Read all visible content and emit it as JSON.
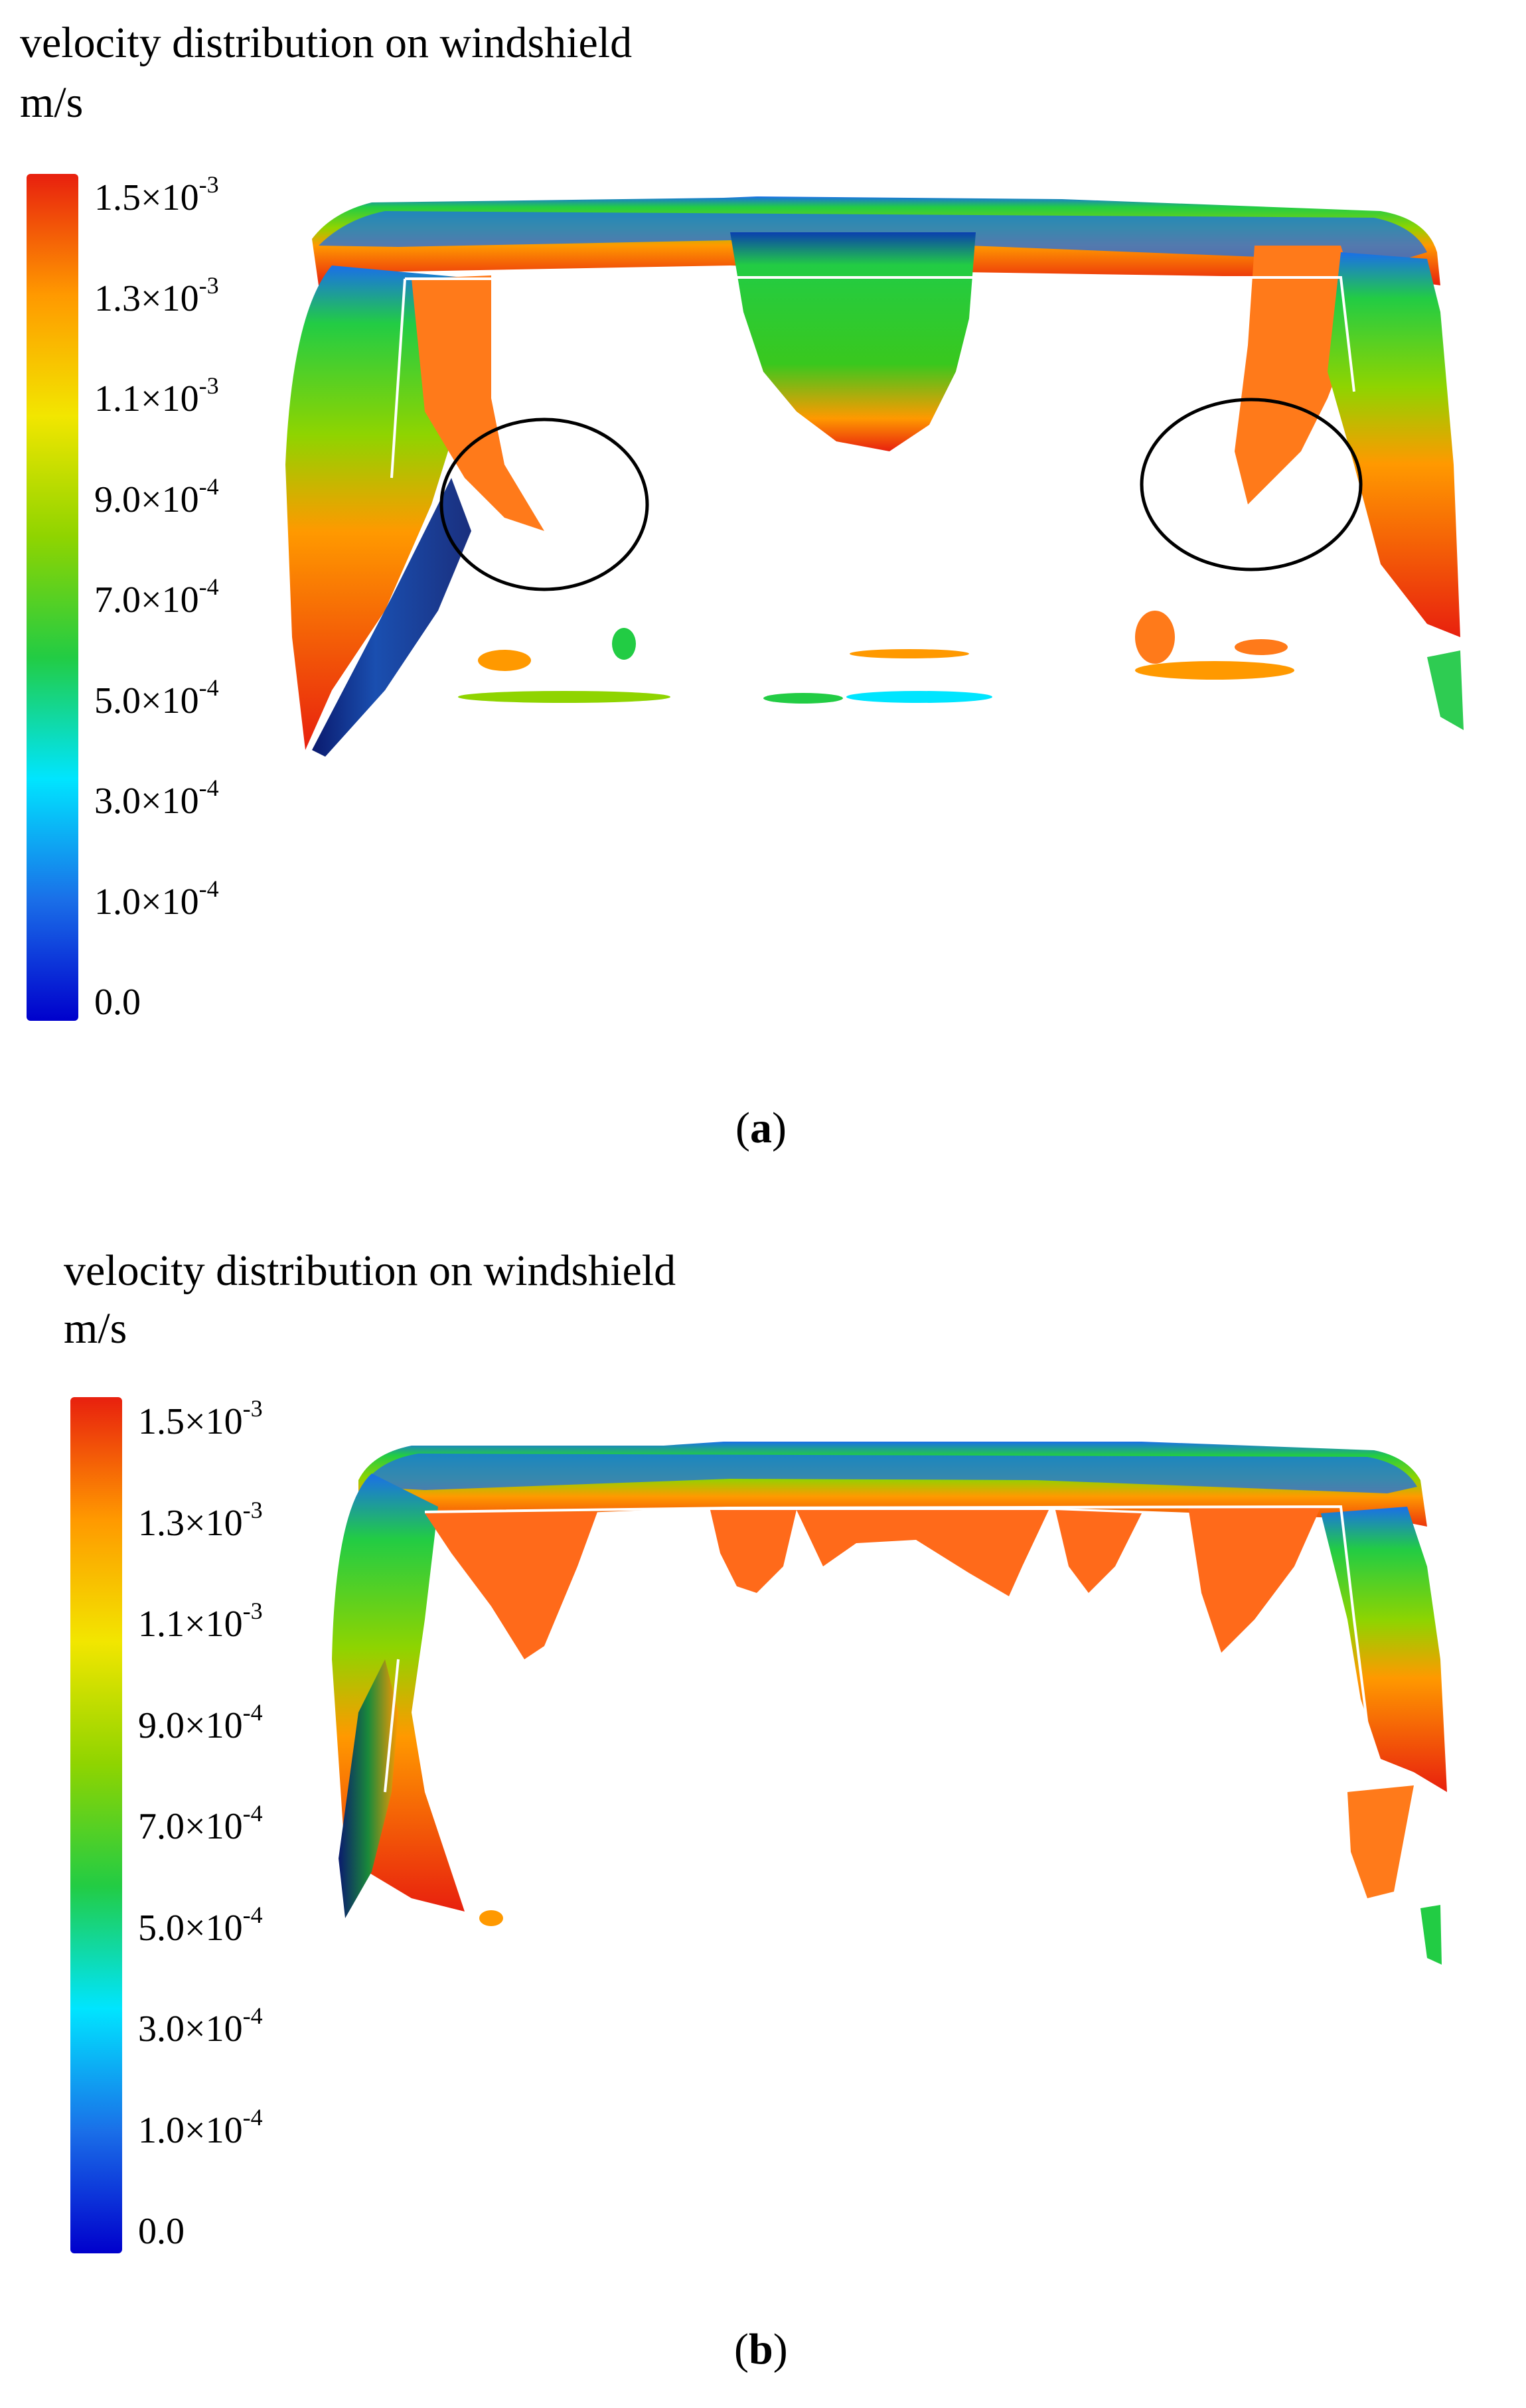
{
  "panels": [
    {
      "id": "a",
      "title": "velocity distribution on windshield",
      "unit": "m/s",
      "colorbar": {
        "colors": [
          "#0000cc",
          "#1a6fe8",
          "#00e5ff",
          "#22cc44",
          "#8fd400",
          "#f2e600",
          "#ff9900",
          "#e8200e"
        ],
        "ticks": [
          {
            "mantissa": "1.5",
            "times": "×",
            "base": "10",
            "exp": "-3"
          },
          {
            "mantissa": "1.3",
            "times": "×",
            "base": "10",
            "exp": "-3"
          },
          {
            "mantissa": "1.1",
            "times": "×",
            "base": "10",
            "exp": "-3"
          },
          {
            "mantissa": "9.0",
            "times": "×",
            "base": "10",
            "exp": "-4"
          },
          {
            "mantissa": "7.0",
            "times": "×",
            "base": "10",
            "exp": "-4"
          },
          {
            "mantissa": "5.0",
            "times": "×",
            "base": "10",
            "exp": "-4"
          },
          {
            "mantissa": "3.0",
            "times": "×",
            "base": "10",
            "exp": "-4"
          },
          {
            "mantissa": "1.0",
            "times": "×",
            "base": "10",
            "exp": "-4"
          },
          {
            "mantissa": "0.0",
            "times": "",
            "base": "",
            "exp": ""
          }
        ]
      },
      "caption": {
        "open": "(",
        "letter": "a",
        "close": ")"
      }
    },
    {
      "id": "b",
      "title": "velocity distribution on windshield",
      "unit": "m/s",
      "colorbar": {
        "colors": [
          "#0000cc",
          "#1a6fe8",
          "#00e5ff",
          "#22cc44",
          "#8fd400",
          "#f2e600",
          "#ff9900",
          "#e8200e"
        ],
        "ticks": [
          {
            "mantissa": "1.5",
            "times": "×",
            "base": "10",
            "exp": "-3"
          },
          {
            "mantissa": "1.3",
            "times": "×",
            "base": "10",
            "exp": "-3"
          },
          {
            "mantissa": "1.1",
            "times": "×",
            "base": "10",
            "exp": "-3"
          },
          {
            "mantissa": "9.0",
            "times": "×",
            "base": "10",
            "exp": "-4"
          },
          {
            "mantissa": "7.0",
            "times": "×",
            "base": "10",
            "exp": "-4"
          },
          {
            "mantissa": "5.0",
            "times": "×",
            "base": "10",
            "exp": "-4"
          },
          {
            "mantissa": "3.0",
            "times": "×",
            "base": "10",
            "exp": "-4"
          },
          {
            "mantissa": "1.0",
            "times": "×",
            "base": "10",
            "exp": "-4"
          },
          {
            "mantissa": "0.0",
            "times": "",
            "base": "",
            "exp": ""
          }
        ]
      },
      "caption": {
        "open": "(",
        "letter": "b",
        "close": ")"
      }
    }
  ]
}
